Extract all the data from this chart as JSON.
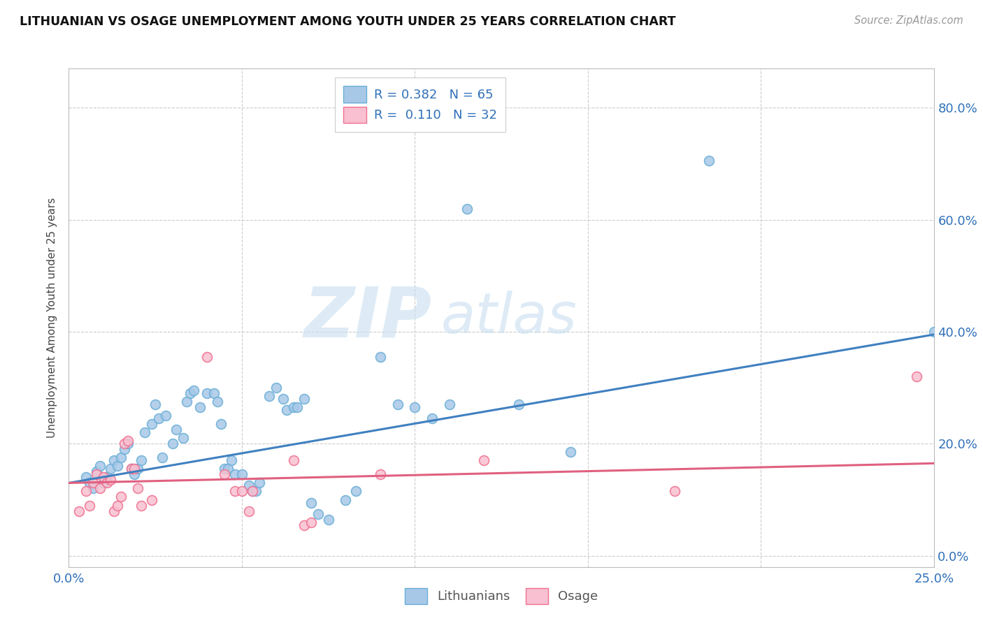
{
  "title": "LITHUANIAN VS OSAGE UNEMPLOYMENT AMONG YOUTH UNDER 25 YEARS CORRELATION CHART",
  "source": "Source: ZipAtlas.com",
  "ylabel": "Unemployment Among Youth under 25 years",
  "ytick_labels": [
    "0.0%",
    "20.0%",
    "40.0%",
    "60.0%",
    "80.0%"
  ],
  "ytick_values": [
    0.0,
    0.2,
    0.4,
    0.6,
    0.8
  ],
  "xlim": [
    0.0,
    0.25
  ],
  "ylim": [
    -0.02,
    0.87
  ],
  "legend_line1": "R = 0.382   N = 65",
  "legend_line2": "R =  0.110   N = 32",
  "watermark_zip": "ZIP",
  "watermark_atlas": "atlas",
  "blue_color": "#a8c8e8",
  "blue_edge": "#6aaed6",
  "pink_color": "#f8c0d0",
  "pink_edge": "#f07090",
  "trend_blue": "#4080c0",
  "trend_pink": "#e06080",
  "blue_points": [
    [
      0.005,
      0.14
    ],
    [
      0.006,
      0.13
    ],
    [
      0.007,
      0.12
    ],
    [
      0.008,
      0.15
    ],
    [
      0.009,
      0.16
    ],
    [
      0.01,
      0.13
    ],
    [
      0.011,
      0.14
    ],
    [
      0.012,
      0.155
    ],
    [
      0.013,
      0.17
    ],
    [
      0.014,
      0.16
    ],
    [
      0.015,
      0.175
    ],
    [
      0.016,
      0.19
    ],
    [
      0.017,
      0.2
    ],
    [
      0.018,
      0.155
    ],
    [
      0.019,
      0.145
    ],
    [
      0.02,
      0.155
    ],
    [
      0.021,
      0.17
    ],
    [
      0.022,
      0.22
    ],
    [
      0.024,
      0.235
    ],
    [
      0.025,
      0.27
    ],
    [
      0.026,
      0.245
    ],
    [
      0.027,
      0.175
    ],
    [
      0.028,
      0.25
    ],
    [
      0.03,
      0.2
    ],
    [
      0.031,
      0.225
    ],
    [
      0.033,
      0.21
    ],
    [
      0.034,
      0.275
    ],
    [
      0.035,
      0.29
    ],
    [
      0.036,
      0.295
    ],
    [
      0.038,
      0.265
    ],
    [
      0.04,
      0.29
    ],
    [
      0.042,
      0.29
    ],
    [
      0.043,
      0.275
    ],
    [
      0.044,
      0.235
    ],
    [
      0.045,
      0.155
    ],
    [
      0.046,
      0.155
    ],
    [
      0.047,
      0.17
    ],
    [
      0.048,
      0.145
    ],
    [
      0.05,
      0.145
    ],
    [
      0.052,
      0.125
    ],
    [
      0.053,
      0.115
    ],
    [
      0.054,
      0.115
    ],
    [
      0.055,
      0.13
    ],
    [
      0.058,
      0.285
    ],
    [
      0.06,
      0.3
    ],
    [
      0.062,
      0.28
    ],
    [
      0.063,
      0.26
    ],
    [
      0.065,
      0.265
    ],
    [
      0.066,
      0.265
    ],
    [
      0.068,
      0.28
    ],
    [
      0.07,
      0.095
    ],
    [
      0.072,
      0.075
    ],
    [
      0.075,
      0.065
    ],
    [
      0.08,
      0.1
    ],
    [
      0.083,
      0.115
    ],
    [
      0.09,
      0.355
    ],
    [
      0.095,
      0.27
    ],
    [
      0.1,
      0.265
    ],
    [
      0.105,
      0.245
    ],
    [
      0.11,
      0.27
    ],
    [
      0.115,
      0.62
    ],
    [
      0.13,
      0.27
    ],
    [
      0.145,
      0.185
    ],
    [
      0.185,
      0.705
    ],
    [
      0.25,
      0.4
    ]
  ],
  "pink_points": [
    [
      0.003,
      0.08
    ],
    [
      0.005,
      0.115
    ],
    [
      0.006,
      0.09
    ],
    [
      0.007,
      0.13
    ],
    [
      0.008,
      0.145
    ],
    [
      0.009,
      0.12
    ],
    [
      0.01,
      0.14
    ],
    [
      0.011,
      0.13
    ],
    [
      0.012,
      0.135
    ],
    [
      0.013,
      0.08
    ],
    [
      0.014,
      0.09
    ],
    [
      0.015,
      0.105
    ],
    [
      0.016,
      0.2
    ],
    [
      0.017,
      0.205
    ],
    [
      0.018,
      0.155
    ],
    [
      0.019,
      0.155
    ],
    [
      0.02,
      0.12
    ],
    [
      0.021,
      0.09
    ],
    [
      0.024,
      0.1
    ],
    [
      0.04,
      0.355
    ],
    [
      0.045,
      0.145
    ],
    [
      0.048,
      0.115
    ],
    [
      0.05,
      0.115
    ],
    [
      0.052,
      0.08
    ],
    [
      0.053,
      0.115
    ],
    [
      0.065,
      0.17
    ],
    [
      0.068,
      0.055
    ],
    [
      0.07,
      0.06
    ],
    [
      0.09,
      0.145
    ],
    [
      0.12,
      0.17
    ],
    [
      0.175,
      0.115
    ],
    [
      0.245,
      0.32
    ]
  ],
  "blue_line": {
    "x0": 0.0,
    "y0": 0.13,
    "x1": 0.25,
    "y1": 0.395
  },
  "pink_line": {
    "x0": 0.0,
    "y0": 0.13,
    "x1": 0.25,
    "y1": 0.165
  }
}
